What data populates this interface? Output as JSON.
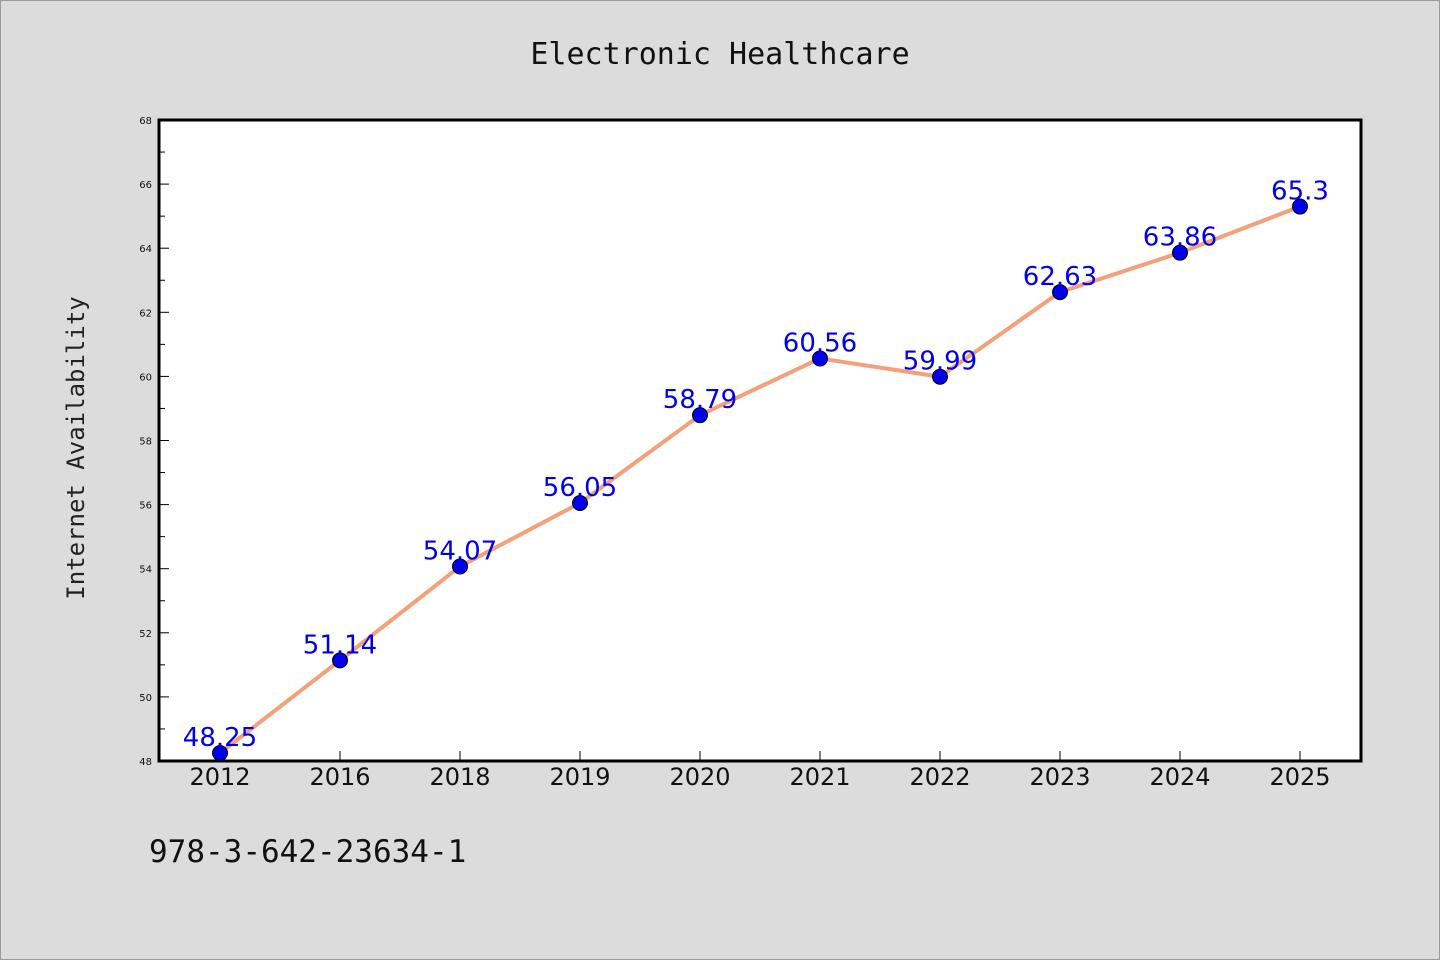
{
  "chart_data": {
    "type": "line",
    "title": "Electronic Healthcare",
    "ylabel": "Internet Availability",
    "xlabel": "",
    "categories": [
      "2012",
      "2016",
      "2018",
      "2019",
      "2020",
      "2021",
      "2022",
      "2023",
      "2024",
      "2025"
    ],
    "values": [
      48.25,
      51.14,
      54.07,
      56.05,
      58.79,
      60.56,
      59.99,
      62.63,
      63.86,
      65.3
    ],
    "data_labels": [
      "48.25",
      "51.14",
      "54.07",
      "56.05",
      "58.79",
      "60.56",
      "59.99",
      "62.63",
      "63.86",
      "65.3"
    ],
    "ylim": [
      48,
      68
    ],
    "yticks": [
      48,
      50,
      52,
      54,
      56,
      58,
      60,
      62,
      64,
      66,
      68
    ],
    "grid": false,
    "line_color": "#f4a07a",
    "marker_color": "#0000ee",
    "label_color": "#0000ee"
  },
  "footer": {
    "code": "978-3-642-23634-1"
  }
}
